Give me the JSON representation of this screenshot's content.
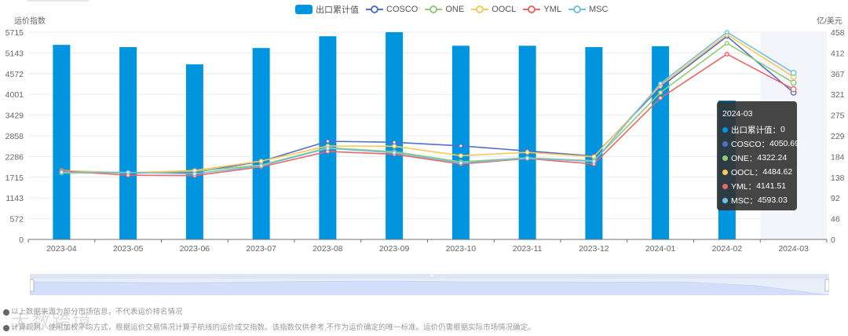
{
  "legend": {
    "items": [
      {
        "label": "出口累计值",
        "type": "bar",
        "color": "#0095de"
      },
      {
        "label": "COSCO",
        "type": "line",
        "color": "#5470c6"
      },
      {
        "label": "ONE",
        "type": "line",
        "color": "#91cc75"
      },
      {
        "label": "OOCL",
        "type": "line",
        "color": "#fac858"
      },
      {
        "label": "YML",
        "type": "line",
        "color": "#ee6666"
      },
      {
        "label": "MSC",
        "type": "line",
        "color": "#73c0de"
      }
    ]
  },
  "axes": {
    "left_name": "运价指数",
    "right_name": "亿/美元",
    "left_ticks": [
      "5715",
      "5143",
      "4572",
      "4001",
      "3429",
      "2858",
      "2286",
      "1715",
      "1143",
      "572",
      "0"
    ],
    "right_ticks": [
      "458",
      "412",
      "367",
      "321",
      "275",
      "229",
      "184",
      "138",
      "92",
      "46",
      "0"
    ],
    "x_ticks": [
      "2023-04",
      "2023-05",
      "2023-06",
      "2023-07",
      "2023-08",
      "2023-09",
      "2023-10",
      "2023-11",
      "2023-12",
      "2024-01",
      "2024-02",
      "2024-03"
    ]
  },
  "tooltip": {
    "title": "2024-03",
    "rows": [
      {
        "label": "出口累计值：",
        "value": "0",
        "color": "#0095de"
      },
      {
        "label": "COSCO：",
        "value": "4050.69",
        "color": "#5470c6"
      },
      {
        "label": "ONE：",
        "value": "4322.24",
        "color": "#91cc75"
      },
      {
        "label": "OOCL：",
        "value": "4484.62",
        "color": "#fac858"
      },
      {
        "label": "YML：",
        "value": "4141.51",
        "color": "#ee6666"
      },
      {
        "label": "MSC：",
        "value": "4593.03",
        "color": "#73c0de"
      }
    ]
  },
  "notes": {
    "line1": "以上数据来源为部分市场信息，不代表运价排名情况",
    "line2": "计算规则：使用加权平均方式，根据运价交易情况计算子航线的运价成交指数。该指数仅供参考,不作为运价确定的唯一标准。运价仍需根据实际市场情况确定。"
  },
  "watermark": "大数跨境",
  "chart_data": {
    "type": "bar",
    "title": "",
    "categories": [
      "2023-04",
      "2023-05",
      "2023-06",
      "2023-07",
      "2023-08",
      "2023-09",
      "2023-10",
      "2023-11",
      "2023-12",
      "2024-01",
      "2024-02",
      "2024-03"
    ],
    "xlabel": "",
    "ylabel": "运价指数",
    "ylabel_right": "亿/美元",
    "ylim": [
      0,
      5715
    ],
    "ylim_right": [
      0,
      458
    ],
    "grid": true,
    "legend_position": "top",
    "highlighted_category": "2024-03",
    "series": [
      {
        "name": "出口累计值",
        "type": "bar",
        "axis": "right",
        "color": "#0095de",
        "values": [
          430,
          425,
          387,
          423,
          449,
          458,
          428,
          428,
          425,
          427,
          307,
          0
        ]
      },
      {
        "name": "COSCO",
        "type": "line",
        "axis": "left",
        "color": "#5470c6",
        "values": [
          1880,
          1830,
          1850,
          2150,
          2706,
          2680,
          2580,
          2440,
          2300,
          4200,
          5600,
          4050.69
        ]
      },
      {
        "name": "ONE",
        "type": "line",
        "axis": "left",
        "color": "#91cc75",
        "values": [
          1830,
          1840,
          1880,
          2050,
          2530,
          2420,
          2140,
          2250,
          2170,
          4050,
          5410,
          4322.24
        ]
      },
      {
        "name": "OOCL",
        "type": "line",
        "axis": "left",
        "color": "#fac858",
        "values": [
          1900,
          1840,
          1900,
          2160,
          2576,
          2570,
          2310,
          2400,
          2280,
          4250,
          5650,
          4484.62
        ]
      },
      {
        "name": "YML",
        "type": "line",
        "axis": "left",
        "color": "#ee6666",
        "values": [
          1890,
          1770,
          1760,
          2000,
          2425,
          2350,
          2080,
          2230,
          2080,
          3900,
          5110,
          4141.51
        ]
      },
      {
        "name": "MSC",
        "type": "line",
        "axis": "left",
        "color": "#73c0de",
        "values": [
          1850,
          1850,
          1810,
          2030,
          2511,
          2390,
          2110,
          2240,
          2150,
          4300,
          5715,
          4593.03
        ]
      }
    ]
  }
}
